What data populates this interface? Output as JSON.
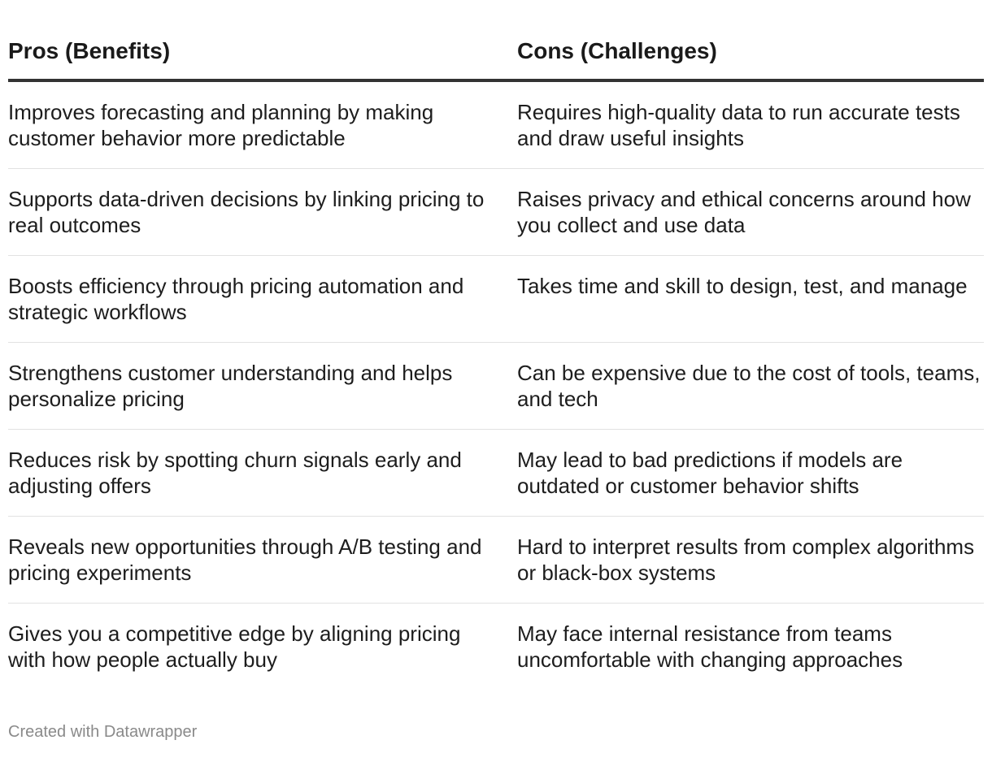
{
  "table": {
    "headers": {
      "pros": "Pros (Benefits)",
      "cons": "Cons (Challenges)"
    },
    "rows": [
      {
        "pros": "Improves forecasting and planning by making customer behavior more predictable",
        "cons": "Requires high-quality data to run accurate tests and draw useful insights"
      },
      {
        "pros": "Supports data-driven decisions by linking pricing to real outcomes",
        "cons": "Raises privacy and ethical concerns around how you collect and use data"
      },
      {
        "pros": "Boosts efficiency through pricing automation and strategic workflows",
        "cons": "Takes time and skill to design, test, and manage"
      },
      {
        "pros": "Strengthens customer understanding and helps personalize pricing",
        "cons": "Can be expensive due to the cost of tools, teams, and tech"
      },
      {
        "pros": "Reduces risk by spotting churn signals early and adjusting offers",
        "cons": "May lead to bad predictions if models are outdated or customer behavior shifts"
      },
      {
        "pros": "Reveals new opportunities through A/B testing and pricing experiments",
        "cons": "Hard to interpret results from complex algorithms or black-box systems"
      },
      {
        "pros": "Gives you a competitive edge by aligning pricing with how people actually buy",
        "cons": "May face internal resistance from teams uncomfortable with changing approaches"
      }
    ]
  },
  "footer": {
    "credit": "Created with Datawrapper"
  }
}
